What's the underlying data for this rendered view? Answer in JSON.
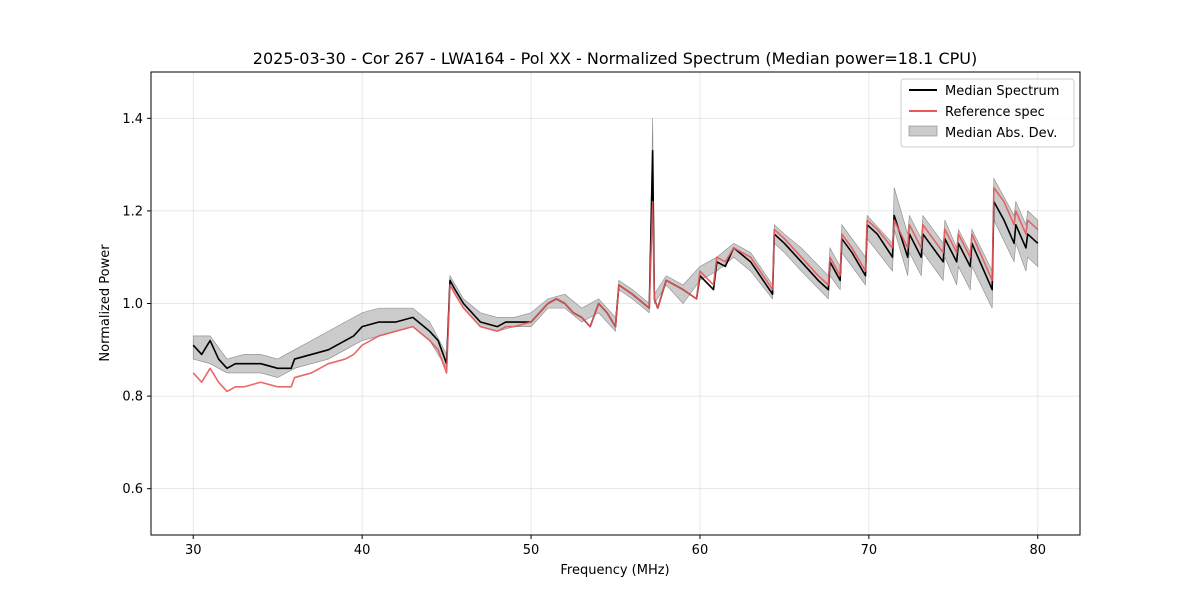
{
  "chart_data": {
    "type": "line",
    "title": "2025-03-30 - Cor 267 - LWA164 - Pol XX - Normalized Spectrum (Median power=18.1 CPU)",
    "xlabel": "Frequency (MHz)",
    "ylabel": "Normalized Power",
    "xlim": [
      27.5,
      82.5
    ],
    "ylim": [
      0.5,
      1.5
    ],
    "xticks": [
      30,
      40,
      50,
      60,
      70,
      80
    ],
    "xtick_labels": [
      "30",
      "40",
      "50",
      "60",
      "70",
      "80"
    ],
    "yticks": [
      0.6,
      0.8,
      1.0,
      1.2,
      1.4
    ],
    "ytick_labels": [
      "0.6",
      "0.8",
      "1.0",
      "1.2",
      "1.4"
    ],
    "grid": true,
    "legend_position": "top-right",
    "legend": [
      "Median Spectrum",
      "Reference spec",
      "Median Abs. Dev."
    ],
    "colors": {
      "median": "#000000",
      "reference": "#e8585a",
      "mad": "#a9a9a9"
    },
    "series": [
      {
        "name": "Median Spectrum",
        "x": [
          30.0,
          30.5,
          31.0,
          31.5,
          32.0,
          32.5,
          33.0,
          34.0,
          35.0,
          35.8,
          36.0,
          37.0,
          38.0,
          39.0,
          39.5,
          40.0,
          41.0,
          42.0,
          43.0,
          44.0,
          44.5,
          45.0,
          45.2,
          45.5,
          46.0,
          46.5,
          47.0,
          48.0,
          48.5,
          49.0,
          50.0,
          50.5,
          51.0,
          51.5,
          52.0,
          52.5,
          53.0,
          53.5,
          54.0,
          54.5,
          55.0,
          55.2,
          56.0,
          57.0,
          57.2,
          57.3,
          57.5,
          58.0,
          59.0,
          59.8,
          60.0,
          60.8,
          61.0,
          61.5,
          62.0,
          63.0,
          64.3,
          64.4,
          65.0,
          66.0,
          67.0,
          67.6,
          67.7,
          68.3,
          68.4,
          69.0,
          69.8,
          69.9,
          70.5,
          71.4,
          71.5,
          72.3,
          72.4,
          73.1,
          73.2,
          74.4,
          74.5,
          75.2,
          75.3,
          76.0,
          76.1,
          77.3,
          77.4,
          78.0,
          78.6,
          78.7,
          79.3,
          79.4,
          80.0
        ],
        "values": [
          0.91,
          0.89,
          0.92,
          0.88,
          0.86,
          0.87,
          0.87,
          0.87,
          0.86,
          0.86,
          0.88,
          0.89,
          0.9,
          0.92,
          0.93,
          0.95,
          0.96,
          0.96,
          0.97,
          0.94,
          0.92,
          0.87,
          1.05,
          1.03,
          1.0,
          0.98,
          0.96,
          0.95,
          0.96,
          0.96,
          0.96,
          0.98,
          1.0,
          1.01,
          1.0,
          0.98,
          0.97,
          0.95,
          1.0,
          0.98,
          0.95,
          1.04,
          1.02,
          0.99,
          1.33,
          1.01,
          0.99,
          1.05,
          1.03,
          1.01,
          1.06,
          1.03,
          1.09,
          1.08,
          1.12,
          1.09,
          1.02,
          1.15,
          1.13,
          1.09,
          1.05,
          1.03,
          1.09,
          1.05,
          1.14,
          1.11,
          1.06,
          1.17,
          1.15,
          1.1,
          1.19,
          1.1,
          1.15,
          1.1,
          1.15,
          1.09,
          1.14,
          1.09,
          1.13,
          1.08,
          1.13,
          1.03,
          1.22,
          1.18,
          1.13,
          1.17,
          1.12,
          1.15,
          1.13
        ]
      },
      {
        "name": "Reference spec",
        "x": [
          30.0,
          30.5,
          31.0,
          31.5,
          32.0,
          32.5,
          33.0,
          34.0,
          35.0,
          35.8,
          36.0,
          37.0,
          38.0,
          39.0,
          39.5,
          40.0,
          41.0,
          42.0,
          43.0,
          44.0,
          44.5,
          45.0,
          45.2,
          45.5,
          46.0,
          46.5,
          47.0,
          48.0,
          48.5,
          49.0,
          50.0,
          50.5,
          51.0,
          51.5,
          52.0,
          52.5,
          53.0,
          53.5,
          54.0,
          54.5,
          55.0,
          55.2,
          56.0,
          57.0,
          57.2,
          57.3,
          57.5,
          58.0,
          59.0,
          59.8,
          60.0,
          60.8,
          61.0,
          61.5,
          62.0,
          63.0,
          64.3,
          64.4,
          65.0,
          66.0,
          67.0,
          67.6,
          67.7,
          68.3,
          68.4,
          69.0,
          69.8,
          69.9,
          70.5,
          71.4,
          71.5,
          72.3,
          72.4,
          73.1,
          73.2,
          74.4,
          74.5,
          75.2,
          75.3,
          76.0,
          76.1,
          77.3,
          77.4,
          78.0,
          78.6,
          78.7,
          79.3,
          79.4,
          80.0
        ],
        "values": [
          0.85,
          0.83,
          0.86,
          0.83,
          0.81,
          0.82,
          0.82,
          0.83,
          0.82,
          0.82,
          0.84,
          0.85,
          0.87,
          0.88,
          0.89,
          0.91,
          0.93,
          0.94,
          0.95,
          0.92,
          0.9,
          0.85,
          1.04,
          1.02,
          0.99,
          0.97,
          0.95,
          0.94,
          0.95,
          0.95,
          0.96,
          0.98,
          1.0,
          1.01,
          1.0,
          0.98,
          0.97,
          0.95,
          1.0,
          0.98,
          0.95,
          1.04,
          1.02,
          0.99,
          1.22,
          1.01,
          0.99,
          1.05,
          1.03,
          1.01,
          1.07,
          1.04,
          1.1,
          1.09,
          1.12,
          1.1,
          1.03,
          1.16,
          1.14,
          1.1,
          1.06,
          1.04,
          1.1,
          1.06,
          1.15,
          1.12,
          1.07,
          1.18,
          1.16,
          1.12,
          1.18,
          1.12,
          1.17,
          1.12,
          1.17,
          1.11,
          1.16,
          1.11,
          1.15,
          1.1,
          1.15,
          1.05,
          1.25,
          1.22,
          1.17,
          1.2,
          1.15,
          1.18,
          1.16
        ]
      },
      {
        "name": "Median Abs. Dev.",
        "x": [
          30.0,
          31.0,
          32.0,
          33.0,
          34.0,
          35.0,
          36.0,
          37.0,
          38.0,
          39.0,
          40.0,
          41.0,
          42.0,
          43.0,
          44.0,
          45.0,
          45.2,
          46.0,
          47.0,
          48.0,
          49.0,
          50.0,
          51.0,
          52.0,
          53.0,
          54.0,
          55.0,
          55.2,
          56.0,
          57.0,
          57.2,
          57.3,
          58.0,
          59.0,
          60.0,
          61.0,
          62.0,
          63.0,
          64.3,
          64.4,
          65.0,
          66.0,
          67.6,
          67.7,
          68.3,
          68.4,
          69.8,
          69.9,
          71.4,
          71.5,
          72.3,
          72.4,
          73.1,
          73.2,
          74.4,
          74.5,
          75.2,
          75.3,
          76.0,
          76.1,
          77.3,
          77.4,
          78.6,
          78.7,
          79.3,
          79.4,
          80.0
        ],
        "lower": [
          0.88,
          0.87,
          0.85,
          0.85,
          0.85,
          0.84,
          0.86,
          0.87,
          0.88,
          0.9,
          0.92,
          0.93,
          0.94,
          0.95,
          0.92,
          0.86,
          1.04,
          0.99,
          0.95,
          0.94,
          0.95,
          0.95,
          0.99,
          0.99,
          0.96,
          0.98,
          0.94,
          1.03,
          1.01,
          0.98,
          1.2,
          1.0,
          1.04,
          1.0,
          1.05,
          1.07,
          1.1,
          1.07,
          1.01,
          1.13,
          1.11,
          1.07,
          1.01,
          1.06,
          1.03,
          1.11,
          1.04,
          1.14,
          1.07,
          1.16,
          1.06,
          1.11,
          1.06,
          1.11,
          1.05,
          1.1,
          1.04,
          1.08,
          1.03,
          1.08,
          0.99,
          1.18,
          1.09,
          1.13,
          1.07,
          1.1,
          1.08
        ],
        "upper": [
          0.93,
          0.93,
          0.88,
          0.89,
          0.89,
          0.88,
          0.9,
          0.92,
          0.94,
          0.96,
          0.98,
          0.99,
          0.99,
          0.99,
          0.96,
          0.89,
          1.06,
          1.01,
          0.98,
          0.97,
          0.97,
          0.98,
          1.01,
          1.02,
          0.99,
          1.01,
          0.97,
          1.05,
          1.03,
          1.0,
          1.4,
          1.02,
          1.06,
          1.04,
          1.08,
          1.1,
          1.13,
          1.11,
          1.04,
          1.17,
          1.15,
          1.12,
          1.06,
          1.12,
          1.08,
          1.17,
          1.1,
          1.19,
          1.13,
          1.25,
          1.15,
          1.19,
          1.14,
          1.19,
          1.13,
          1.18,
          1.12,
          1.16,
          1.11,
          1.16,
          1.07,
          1.27,
          1.19,
          1.22,
          1.17,
          1.2,
          1.18
        ]
      }
    ]
  }
}
